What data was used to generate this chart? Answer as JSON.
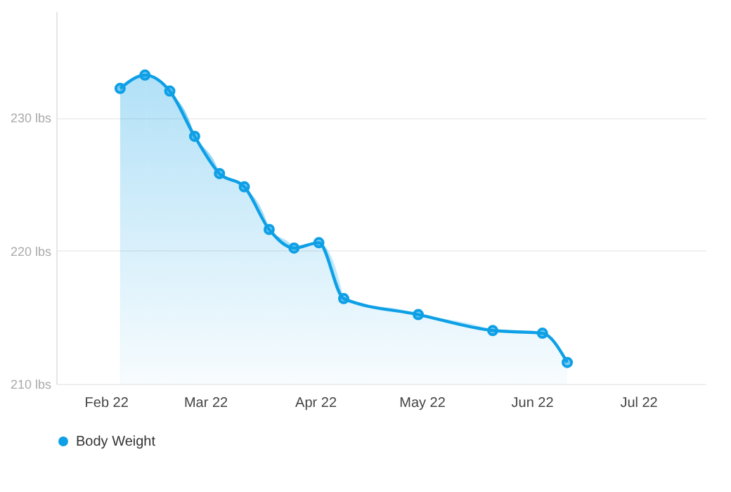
{
  "chart_data": {
    "type": "area",
    "x": [
      "2022-02-05",
      "2022-02-12",
      "2022-02-19",
      "2022-02-26",
      "2022-03-05",
      "2022-03-12",
      "2022-03-19",
      "2022-03-26",
      "2022-04-02",
      "2022-04-09",
      "2022-04-30",
      "2022-05-21",
      "2022-06-04",
      "2022-06-11"
    ],
    "series": [
      {
        "name": "Body Weight",
        "color": "#0ea0e6",
        "values": [
          232.2,
          233.2,
          232.0,
          228.6,
          225.8,
          224.8,
          221.6,
          220.2,
          220.6,
          216.4,
          215.2,
          214.0,
          213.8,
          211.6
        ]
      }
    ],
    "xlim": [
      "2022-01-18",
      "2022-07-20"
    ],
    "xticks": [
      {
        "value": "2022-02-01",
        "label": "Feb 22"
      },
      {
        "value": "2022-03-01",
        "label": "Mar 22"
      },
      {
        "value": "2022-04-01",
        "label": "Apr 22"
      },
      {
        "value": "2022-05-01",
        "label": "May 22"
      },
      {
        "value": "2022-06-01",
        "label": "Jun 22"
      },
      {
        "value": "2022-07-01",
        "label": "Jul 22"
      }
    ],
    "ylim": [
      210,
      238
    ],
    "yticks": [
      {
        "value": 210,
        "label": "210 lbs"
      },
      {
        "value": 220,
        "label": "220 lbs"
      },
      {
        "value": 230,
        "label": "230 lbs"
      }
    ],
    "grid": "y",
    "legend": "bottom left",
    "marker": "circle",
    "line_style": "solid"
  }
}
